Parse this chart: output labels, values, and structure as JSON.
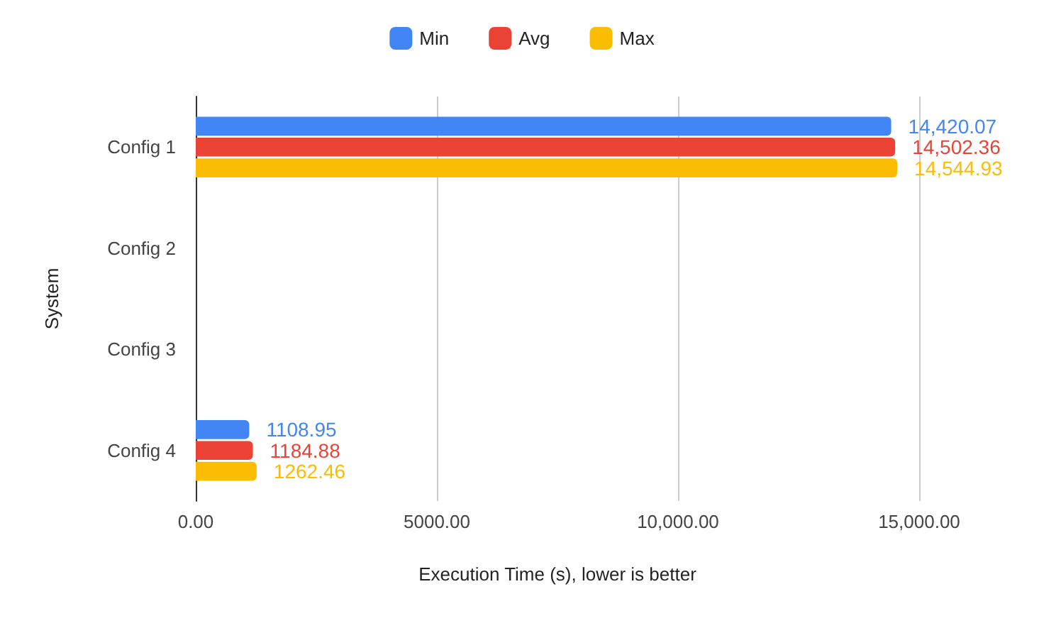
{
  "chart_data": {
    "type": "bar",
    "orientation": "horizontal",
    "xlabel": "Execution Time (s), lower is better",
    "ylabel": "System",
    "categories": [
      "Config 1",
      "Config 2",
      "Config 3",
      "Config 4"
    ],
    "series": [
      {
        "name": "Min",
        "color": "#4285f4",
        "values": [
          14420.07,
          null,
          null,
          1108.95
        ],
        "value_labels": [
          "14,420.07",
          null,
          null,
          "1108.95"
        ]
      },
      {
        "name": "Avg",
        "color": "#ea4335",
        "values": [
          14502.36,
          null,
          null,
          1184.88
        ],
        "value_labels": [
          "14,502.36",
          null,
          null,
          "1184.88"
        ]
      },
      {
        "name": "Max",
        "color": "#fbbc04",
        "values": [
          14544.93,
          null,
          null,
          1262.46
        ],
        "value_labels": [
          "14,544.93",
          null,
          null,
          "1262.46"
        ]
      }
    ],
    "xlim": [
      0,
      15000
    ],
    "xticks": [
      {
        "value": 0,
        "label": "0.00"
      },
      {
        "value": 5000,
        "label": "5000.00"
      },
      {
        "value": 10000,
        "label": "10,000.00"
      },
      {
        "value": 15000,
        "label": "15,000.00"
      }
    ],
    "grid": "x",
    "legend": "top"
  }
}
